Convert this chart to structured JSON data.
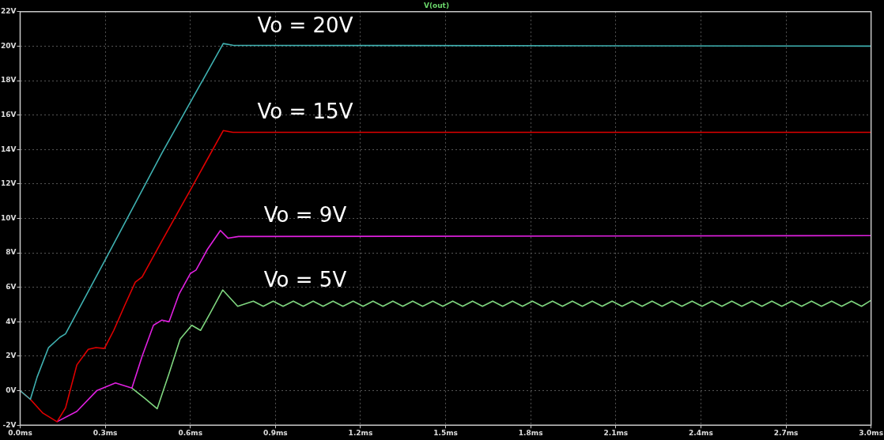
{
  "chart_data": {
    "type": "line",
    "title": "V(out)",
    "xlim": [
      0,
      3
    ],
    "xticks": [
      {
        "value": 0,
        "label": "0.0ms"
      },
      {
        "value": 0.3,
        "label": "0.3ms"
      },
      {
        "value": 0.6,
        "label": "0.6ms"
      },
      {
        "value": 0.9,
        "label": "0.9ms"
      },
      {
        "value": 1.2,
        "label": "1.2ms"
      },
      {
        "value": 1.5,
        "label": "1.5ms"
      },
      {
        "value": 1.8,
        "label": "1.8ms"
      },
      {
        "value": 2.1,
        "label": "2.1ms"
      },
      {
        "value": 2.4,
        "label": "2.4ms"
      },
      {
        "value": 2.7,
        "label": "2.7ms"
      },
      {
        "value": 3.0,
        "label": "3.0ms"
      }
    ],
    "ylim": [
      -2,
      22
    ],
    "yticks": [
      {
        "value": -2,
        "label": "-2V"
      },
      {
        "value": 0,
        "label": "0V"
      },
      {
        "value": 2,
        "label": "2V"
      },
      {
        "value": 4,
        "label": "4V"
      },
      {
        "value": 6,
        "label": "6V"
      },
      {
        "value": 8,
        "label": "8V"
      },
      {
        "value": 10,
        "label": "10V"
      },
      {
        "value": 12,
        "label": "12V"
      },
      {
        "value": 14,
        "label": "14V"
      },
      {
        "value": 16,
        "label": "16V"
      },
      {
        "value": 18,
        "label": "18V"
      },
      {
        "value": 20,
        "label": "20V"
      },
      {
        "value": 22,
        "label": "22V"
      }
    ],
    "grid": true,
    "legend": false,
    "marker": "none",
    "line_style": "solid",
    "annotations": [
      "Vo = 20V",
      "Vo = 15V",
      "Vo = 9V",
      "Vo = 5V"
    ],
    "series": [
      {
        "color": "#3fb1b1",
        "x": [
          0,
          0.036,
          0.06,
          0.1,
          0.14,
          0.16,
          0.3,
          0.5,
          0.716,
          0.75,
          3.0
        ],
        "values": [
          0,
          -0.5,
          0.8,
          2.5,
          3.1,
          3.3,
          7.6,
          13.8,
          20.15,
          20.05,
          20.0
        ]
      },
      {
        "color": "#e00000",
        "x": [
          0,
          0.036,
          0.08,
          0.13,
          0.16,
          0.2,
          0.24,
          0.267,
          0.297,
          0.33,
          0.37,
          0.406,
          0.43,
          0.5,
          0.6,
          0.716,
          0.75,
          3.0
        ],
        "values": [
          0,
          -0.5,
          -1.3,
          -1.8,
          -1.0,
          1.5,
          2.4,
          2.5,
          2.45,
          3.5,
          5.0,
          6.3,
          6.6,
          8.7,
          11.65,
          15.1,
          15.0,
          15.0
        ]
      },
      {
        "color": "#e020e0",
        "x": [
          0.13,
          0.2,
          0.27,
          0.336,
          0.394,
          0.43,
          0.47,
          0.5,
          0.525,
          0.56,
          0.6,
          0.62,
          0.66,
          0.706,
          0.733,
          0.77,
          3.0
        ],
        "values": [
          -1.8,
          -1.2,
          0,
          0.45,
          0.15,
          2.0,
          3.8,
          4.1,
          4.0,
          5.6,
          6.8,
          7.0,
          8.2,
          9.3,
          8.85,
          8.95,
          9.0
        ]
      },
      {
        "color": "#7fd67f",
        "x": [
          0.394,
          0.44,
          0.483,
          0.525,
          0.564,
          0.605,
          0.636,
          0.67,
          0.714,
          0.767,
          0.822,
          0.857,
          0.892,
          0.927,
          0.963,
          0.998,
          1.033,
          1.068,
          1.103,
          1.138,
          1.174,
          1.209,
          1.244,
          1.279,
          1.314,
          1.349,
          1.384,
          1.419,
          1.455,
          1.49,
          1.525,
          1.56,
          1.595,
          1.63,
          1.666,
          1.701,
          1.736,
          1.771,
          1.806,
          1.841,
          1.877,
          1.912,
          1.947,
          1.982,
          2.017,
          2.052,
          2.087,
          2.122,
          2.158,
          2.193,
          2.228,
          2.263,
          2.298,
          2.333,
          2.369,
          2.404,
          2.439,
          2.474,
          2.509,
          2.544,
          2.58,
          2.615,
          2.65,
          2.685,
          2.72,
          2.755,
          2.79,
          2.825,
          2.861,
          2.896,
          2.931,
          2.966,
          3.0
        ],
        "values": [
          0.15,
          -0.45,
          -1.05,
          1.0,
          3.0,
          3.8,
          3.5,
          4.5,
          5.85,
          4.9,
          5.2,
          4.9,
          5.2,
          4.9,
          5.2,
          4.9,
          5.2,
          4.9,
          5.2,
          4.9,
          5.2,
          4.9,
          5.2,
          4.9,
          5.2,
          4.9,
          5.2,
          4.9,
          5.2,
          4.9,
          5.2,
          4.9,
          5.2,
          4.9,
          5.2,
          4.9,
          5.2,
          4.9,
          5.2,
          4.9,
          5.2,
          4.9,
          5.2,
          4.9,
          5.2,
          4.9,
          5.2,
          4.9,
          5.2,
          4.9,
          5.2,
          4.9,
          5.2,
          4.9,
          5.2,
          4.9,
          5.2,
          4.9,
          5.2,
          4.9,
          5.2,
          4.9,
          5.2,
          4.9,
          5.2,
          4.9,
          5.2,
          4.9,
          5.2,
          4.9,
          5.2,
          4.9,
          5.25
        ]
      }
    ]
  }
}
